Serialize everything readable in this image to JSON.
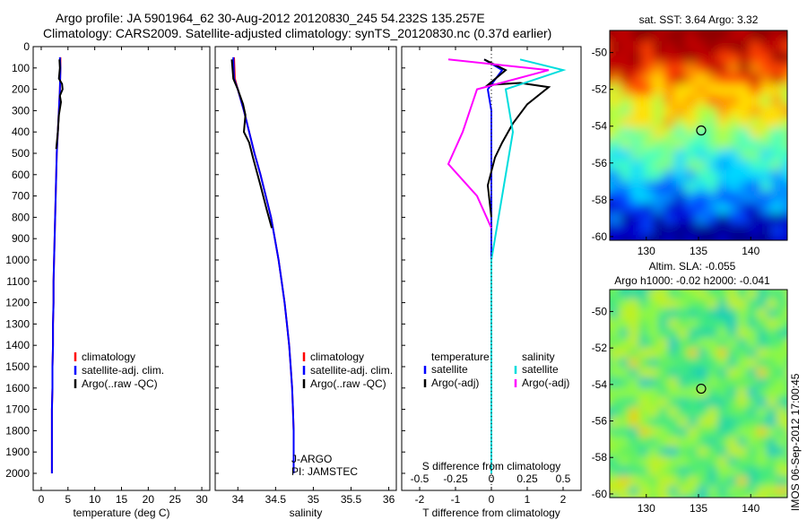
{
  "header": {
    "line1": "Argo profile: JA 5901964_62 30-Aug-2012 20120830_245 54.232S 135.257E",
    "line2": "Climatology: CARS2009. Satellite-adjusted climatology: synTS_20120830.nc (0.37d earlier)"
  },
  "credit": "IMOS 06-Sep-2012 17:00:45",
  "colors": {
    "climatology": "#ff0000",
    "satellite": "#0000ff",
    "argo": "#000000",
    "salinity_satellite": "#00dddd",
    "salinity_argo": "#ff00ff"
  },
  "chart_data": [
    {
      "type": "line",
      "xlabel": "temperature (deg C)",
      "ylabel": "",
      "xlim": [
        -1.5,
        31.5
      ],
      "ylim": [
        2080,
        0
      ],
      "xticks": [
        "0",
        "5",
        "10",
        "15",
        "20",
        "25",
        "30"
      ],
      "yticks": [
        "0",
        "100",
        "200",
        "300",
        "400",
        "500",
        "600",
        "700",
        "800",
        "900",
        "1000",
        "1100",
        "1200",
        "1300",
        "1400",
        "1500",
        "1600",
        "1700",
        "1800",
        "1900",
        "2000"
      ],
      "legend": [
        "climatology",
        "satellite-adj. clim.",
        "Argo(..raw -QC)"
      ],
      "legend_position": "lower-center",
      "series": [
        {
          "name": "climatology",
          "color": "#ff0000",
          "x": [
            3.6,
            3.6,
            3.5,
            3.3,
            3.1,
            2.9,
            2.8,
            2.7,
            2.6,
            2.5,
            2.4,
            2.3,
            2.3,
            2.2,
            2.2,
            2.1,
            2.1,
            2.0,
            2.0,
            2.0
          ],
          "y": [
            50,
            100,
            200,
            300,
            400,
            500,
            600,
            700,
            800,
            900,
            1000,
            1100,
            1200,
            1300,
            1400,
            1500,
            1600,
            1700,
            1800,
            2000
          ]
        },
        {
          "name": "satellite-adj. clim.",
          "color": "#0000ff",
          "x": [
            3.5,
            3.6,
            3.5,
            3.3,
            3.1,
            2.9,
            2.8,
            2.7,
            2.6,
            2.5,
            2.4,
            2.3,
            2.3,
            2.2,
            2.2,
            2.1,
            2.1,
            2.0,
            2.0,
            2.0
          ],
          "y": [
            50,
            100,
            200,
            300,
            400,
            500,
            600,
            700,
            800,
            900,
            1000,
            1100,
            1200,
            1300,
            1400,
            1500,
            1600,
            1700,
            1800,
            2000
          ]
        },
        {
          "name": "Argo(..raw -QC)",
          "color": "#000000",
          "x": [
            3.4,
            3.5,
            3.3,
            3.9,
            4.0,
            3.5,
            3.7,
            3.3,
            3.1,
            2.8
          ],
          "y": [
            60,
            100,
            150,
            175,
            200,
            230,
            260,
            320,
            400,
            480
          ]
        }
      ]
    },
    {
      "type": "line",
      "xlabel": "salinity",
      "ylabel": "",
      "xlim": [
        33.7,
        36.1
      ],
      "ylim": [
        2080,
        0
      ],
      "xticks": [
        "34",
        "34.5",
        "35",
        "35.5",
        "36"
      ],
      "legend": [
        "climatology",
        "satellite-adj. clim.",
        "Argo(..raw -QC)"
      ],
      "legend_position": "lower-right",
      "annotations": [
        "J-ARGO",
        "PI: JAMSTEC"
      ],
      "series": [
        {
          "name": "climatology",
          "color": "#ff0000",
          "x": [
            33.95,
            33.96,
            34.0,
            34.08,
            34.15,
            34.22,
            34.3,
            34.37,
            34.44,
            34.49,
            34.54,
            34.58,
            34.62,
            34.65,
            34.68,
            34.7,
            34.72,
            34.73,
            34.74,
            34.74
          ],
          "y": [
            50,
            150,
            200,
            300,
            400,
            500,
            600,
            700,
            800,
            900,
            1000,
            1100,
            1200,
            1300,
            1400,
            1500,
            1600,
            1700,
            1800,
            2000
          ]
        },
        {
          "name": "satellite-adj. clim.",
          "color": "#0000ff",
          "x": [
            33.94,
            33.95,
            34.0,
            34.08,
            34.15,
            34.22,
            34.3,
            34.37,
            34.44,
            34.49,
            34.54,
            34.58,
            34.62,
            34.65,
            34.68,
            34.7,
            34.72,
            34.73,
            34.74,
            34.74
          ],
          "y": [
            50,
            150,
            200,
            300,
            400,
            500,
            600,
            700,
            800,
            900,
            1000,
            1100,
            1200,
            1300,
            1400,
            1500,
            1600,
            1700,
            1800,
            2000
          ]
        },
        {
          "name": "Argo(..raw -QC)",
          "color": "#000000",
          "x": [
            33.92,
            33.94,
            34.0,
            34.07,
            34.1,
            34.08,
            34.15,
            34.2,
            34.3,
            34.38,
            34.45
          ],
          "y": [
            60,
            150,
            200,
            270,
            320,
            400,
            450,
            520,
            650,
            760,
            850
          ]
        }
      ]
    },
    {
      "type": "line",
      "xlabel": "T difference from climatology",
      "x2label": "S difference from climatology",
      "ylabel": "",
      "xlim": [
        -2.5,
        2.5
      ],
      "x2lim": [
        -0.625,
        0.625
      ],
      "ylim": [
        2080,
        0
      ],
      "xticks": [
        "-2",
        "-1",
        "0",
        "1",
        "2"
      ],
      "x2ticks": [
        "-0.5",
        "-0.25",
        "0",
        "0.25",
        "0.5"
      ],
      "legend": [
        "temperature",
        "satellite",
        "Argo(-adj)",
        "salinity",
        "satellite",
        "Argo(-adj)"
      ],
      "legend_position": "lower-center",
      "series": [
        {
          "name": "satellite",
          "color": "#0000ff",
          "x": [
            -0.2,
            0.3,
            -0.1,
            0.0,
            0.0,
            0.0,
            0.0,
            0.0,
            0.0,
            0.0
          ],
          "y": [
            60,
            110,
            200,
            300,
            500,
            800,
            1000,
            1400,
            1800,
            2000
          ]
        },
        {
          "name": "Argo(-adj)",
          "color": "#000000",
          "x": [
            -0.2,
            0.4,
            -0.1,
            0.8,
            1.6,
            1.0,
            0.6,
            0.3,
            0.1,
            -0.1,
            0.0
          ],
          "y": [
            60,
            110,
            180,
            170,
            190,
            270,
            360,
            450,
            520,
            650,
            800
          ]
        },
        {
          "name": "satellite",
          "color": "#00dddd",
          "x": [
            0.2,
            0.5,
            0.1,
            0.15,
            0.1,
            0.05,
            0.0,
            0.0,
            0.0
          ],
          "y": [
            60,
            110,
            200,
            400,
            600,
            800,
            1000,
            1500,
            2000
          ]
        },
        {
          "name": "Argo(-adj)",
          "color": "#ff00ff",
          "x": [
            -0.3,
            0.4,
            -0.1,
            -0.2,
            -0.3,
            -0.1,
            0.0
          ],
          "y": [
            60,
            110,
            200,
            400,
            550,
            700,
            850
          ]
        }
      ]
    },
    {
      "type": "heatmap",
      "title": "sat. SST: 3.64  Argo: 3.32",
      "xlim": [
        126.5,
        143.5
      ],
      "ylim": [
        -60.2,
        -48.8
      ],
      "xticks": [
        "130",
        "135",
        "140"
      ],
      "yticks": [
        "-50",
        "-52",
        "-54",
        "-56",
        "-58",
        "-60"
      ],
      "marker": {
        "lon": 135.257,
        "lat": -54.232
      },
      "colormap": "jet"
    },
    {
      "type": "heatmap",
      "title": "Altim. SLA: -0.055",
      "subtitle": "Argo h1000: -0.02 h2000: -0.041",
      "xlim": [
        126.5,
        143.5
      ],
      "ylim": [
        -60.2,
        -48.8
      ],
      "xticks": [
        "130",
        "135",
        "140"
      ],
      "yticks": [
        "-50",
        "-52",
        "-54",
        "-56",
        "-58",
        "-60"
      ],
      "marker": {
        "lon": 135.257,
        "lat": -54.232
      },
      "colormap": "jet"
    }
  ]
}
